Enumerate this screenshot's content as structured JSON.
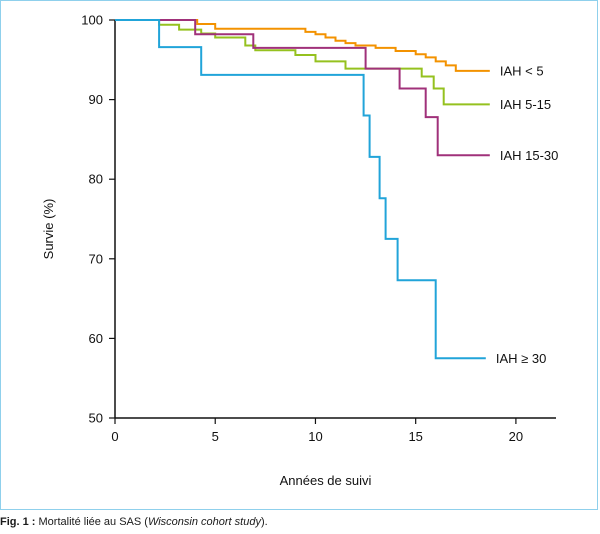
{
  "chart_data": {
    "type": "line",
    "step": true,
    "xlabel": "Années de suivi",
    "ylabel": "Survie (%)",
    "xlim": [
      0,
      22
    ],
    "ylim": [
      50,
      100
    ],
    "xticks": [
      "0",
      "5",
      "10",
      "15",
      "20"
    ],
    "yticks": [
      "50",
      "60",
      "70",
      "80",
      "90",
      "100"
    ],
    "grid": false,
    "legend": "inline-right",
    "series": [
      {
        "name": "IAH < 5",
        "color": "#f39200",
        "points": [
          [
            0,
            100
          ],
          [
            4,
            100
          ],
          [
            4.1,
            99.5
          ],
          [
            4.8,
            99.5
          ],
          [
            5,
            98.9
          ],
          [
            9,
            98.9
          ],
          [
            9.5,
            98.5
          ],
          [
            10,
            98.2
          ],
          [
            10.5,
            97.8
          ],
          [
            11,
            97.4
          ],
          [
            11.5,
            97.1
          ],
          [
            12,
            96.8
          ],
          [
            12.5,
            96.8
          ],
          [
            13,
            96.5
          ],
          [
            14,
            96.1
          ],
          [
            15,
            95.7
          ],
          [
            15.5,
            95.3
          ],
          [
            16,
            94.8
          ],
          [
            16.5,
            94.3
          ],
          [
            17,
            93.6
          ],
          [
            18.7,
            93.6
          ]
        ]
      },
      {
        "name": "IAH 5-15",
        "color": "#95c11f",
        "points": [
          [
            0,
            100
          ],
          [
            2.2,
            100
          ],
          [
            2.2,
            99.4
          ],
          [
            3.2,
            99.4
          ],
          [
            3.2,
            98.8
          ],
          [
            4.3,
            98.8
          ],
          [
            4.3,
            98.3
          ],
          [
            5,
            98.3
          ],
          [
            5,
            97.8
          ],
          [
            6.5,
            97.8
          ],
          [
            6.5,
            96.8
          ],
          [
            7,
            96.8
          ],
          [
            7,
            96.2
          ],
          [
            9,
            96.2
          ],
          [
            9,
            95.6
          ],
          [
            10,
            95.6
          ],
          [
            10,
            94.8
          ],
          [
            11.5,
            94.8
          ],
          [
            11.5,
            93.9
          ],
          [
            15.3,
            93.9
          ],
          [
            15.3,
            92.9
          ],
          [
            15.9,
            92.9
          ],
          [
            15.9,
            91.4
          ],
          [
            16.4,
            91.4
          ],
          [
            16.4,
            89.4
          ],
          [
            18.7,
            89.4
          ]
        ]
      },
      {
        "name": "IAH 15-30",
        "color": "#a0317a",
        "points": [
          [
            0,
            100
          ],
          [
            4,
            100
          ],
          [
            4,
            98.2
          ],
          [
            6.9,
            98.2
          ],
          [
            6.9,
            96.5
          ],
          [
            12.5,
            96.5
          ],
          [
            12.5,
            93.9
          ],
          [
            14.2,
            93.9
          ],
          [
            14.2,
            91.4
          ],
          [
            15.5,
            91.4
          ],
          [
            15.5,
            87.8
          ],
          [
            16.1,
            87.8
          ],
          [
            16.1,
            83
          ],
          [
            18.7,
            83
          ]
        ]
      },
      {
        "name": "IAH ≥ 30",
        "color": "#21a4d9",
        "points": [
          [
            0,
            100
          ],
          [
            2.2,
            100
          ],
          [
            2.2,
            96.6
          ],
          [
            4.3,
            96.6
          ],
          [
            4.3,
            93.1
          ],
          [
            12.4,
            93.1
          ],
          [
            12.4,
            88
          ],
          [
            12.7,
            88
          ],
          [
            12.7,
            82.8
          ],
          [
            13.2,
            82.8
          ],
          [
            13.2,
            77.6
          ],
          [
            13.5,
            77.6
          ],
          [
            13.5,
            72.5
          ],
          [
            14.1,
            72.5
          ],
          [
            14.1,
            67.3
          ],
          [
            16,
            67.3
          ],
          [
            16,
            57.5
          ],
          [
            18.5,
            57.5
          ]
        ]
      }
    ]
  },
  "caption": {
    "label": "Fig. 1 :",
    "text": " Mortalité liée au SAS (",
    "italic": "Wisconsin cohort study",
    "tail": ")."
  }
}
